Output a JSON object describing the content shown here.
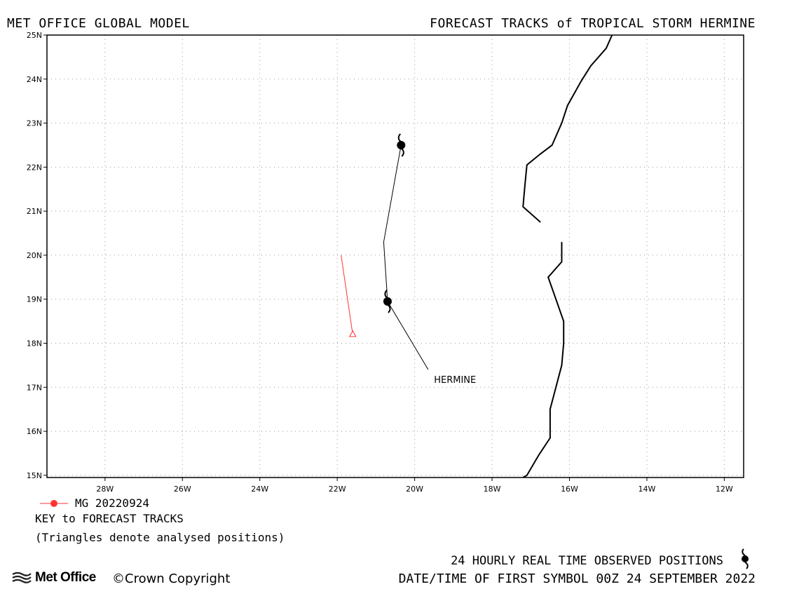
{
  "header": {
    "left_title": "MET OFFICE GLOBAL MODEL",
    "right_title": "FORECAST TRACKS of TROPICAL STORM HERMINE"
  },
  "map": {
    "lon_range": [
      -29.5,
      -11.5
    ],
    "lat_range": [
      14.95,
      25.0
    ],
    "lon_tick_labels": [
      "28W",
      "26W",
      "24W",
      "22W",
      "20W",
      "18W",
      "16W",
      "14W",
      "12W"
    ],
    "lon_ticks": [
      -28,
      -26,
      -24,
      -22,
      -20,
      -18,
      -16,
      -14,
      -12
    ],
    "lat_tick_labels": [
      "15N",
      "16N",
      "17N",
      "18N",
      "19N",
      "20N",
      "21N",
      "22N",
      "23N",
      "24N",
      "25N"
    ],
    "lat_ticks": [
      15,
      16,
      17,
      18,
      19,
      20,
      21,
      22,
      23,
      24,
      25
    ],
    "grid": true,
    "coastline_segments": [
      [
        [
          -14.9,
          25.0
        ],
        [
          -15.05,
          24.7
        ],
        [
          -15.45,
          24.3
        ],
        [
          -15.7,
          23.95
        ],
        [
          -16.05,
          23.4
        ],
        [
          -16.2,
          23.0
        ],
        [
          -16.45,
          22.5
        ],
        [
          -16.75,
          22.3
        ],
        [
          -17.1,
          22.05
        ],
        [
          -17.15,
          21.6
        ],
        [
          -17.2,
          21.1
        ],
        [
          -16.75,
          20.75
        ]
      ],
      [
        [
          -16.2,
          20.3
        ],
        [
          -16.2,
          19.85
        ],
        [
          -16.55,
          19.5
        ],
        [
          -16.35,
          19.0
        ],
        [
          -16.15,
          18.5
        ],
        [
          -16.15,
          18.0
        ],
        [
          -16.2,
          17.5
        ],
        [
          -16.35,
          17.0
        ],
        [
          -16.5,
          16.5
        ],
        [
          -16.5,
          15.85
        ],
        [
          -16.8,
          15.45
        ],
        [
          -17.1,
          15.0
        ],
        [
          -17.2,
          14.95
        ]
      ]
    ],
    "observed_track": [
      [
        -20.7,
        18.95
      ],
      [
        -20.8,
        20.3
      ],
      [
        -20.35,
        22.5
      ]
    ],
    "observed_symbols": [
      [
        -20.7,
        18.95
      ],
      [
        -20.35,
        22.5
      ]
    ],
    "storm_label": {
      "text": "HERMINE",
      "lon": -19.5,
      "lat": 17.1
    },
    "label_leader": [
      [
        -20.7,
        18.95
      ],
      [
        -19.65,
        17.4
      ]
    ],
    "forecast_tracks": [
      {
        "name": "MG 20220924",
        "color": "#ff3333",
        "points": [
          [
            -21.6,
            18.2
          ],
          [
            -21.9,
            20.0
          ]
        ],
        "analysed_positions": [
          [
            -21.6,
            18.2
          ]
        ]
      }
    ]
  },
  "legend": {
    "series_label": "MG 20220924",
    "series_color": "#ff3333",
    "key_title": "KEY to FORECAST TRACKS",
    "note": "(Triangles denote analysed positions)"
  },
  "footer": {
    "observed_label": "24 HOURLY REAL TIME OBSERVED POSITIONS",
    "date_label": "DATE/TIME OF FIRST SYMBOL 00Z 24 SEPTEMBER 2022",
    "logo_text": "Met Office",
    "copyright": "©Crown Copyright"
  }
}
